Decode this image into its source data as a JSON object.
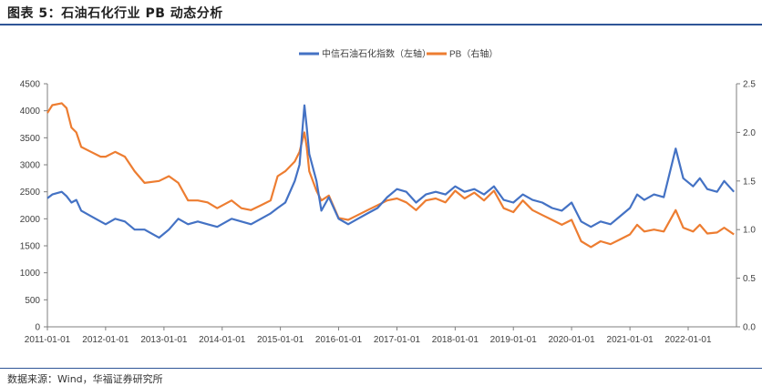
{
  "figure_title": "图表 5：石油石化行业 PB 动态分析",
  "source_note": "数据来源：Wind，华福证券研究所",
  "chart_data": {
    "type": "line",
    "title": "",
    "legend_position": "top-center",
    "grid": false,
    "x_ticks": [
      "2011-01-01",
      "2012-01-01",
      "2013-01-01",
      "2014-01-01",
      "2015-01-01",
      "2016-01-01",
      "2017-01-01",
      "2018-01-01",
      "2019-01-01",
      "2020-01-01",
      "2021-01-01",
      "2022-01-01"
    ],
    "xlim": [
      "2011-01-01",
      "2022-10-31"
    ],
    "y_left": {
      "ylim": [
        0,
        4500
      ],
      "ticks": [
        "0",
        "500",
        "1000",
        "1500",
        "2000",
        "2500",
        "3000",
        "3500",
        "4000",
        "4500"
      ]
    },
    "y_right": {
      "ylim": [
        0,
        2.5
      ],
      "ticks": [
        "0.0",
        "0.5",
        "1.0",
        "1.5",
        "2.0",
        "2.5"
      ]
    },
    "series": [
      {
        "name": "中信石油石化指数（左轴）",
        "axis": "left",
        "color": "#4472c4",
        "points": [
          [
            "2011-01-01",
            2380
          ],
          [
            "2011-02-01",
            2450
          ],
          [
            "2011-04-01",
            2500
          ],
          [
            "2011-05-01",
            2420
          ],
          [
            "2011-06-01",
            2300
          ],
          [
            "2011-07-01",
            2350
          ],
          [
            "2011-08-01",
            2150
          ],
          [
            "2011-10-01",
            2050
          ],
          [
            "2011-12-01",
            1950
          ],
          [
            "2012-01-01",
            1900
          ],
          [
            "2012-03-01",
            2000
          ],
          [
            "2012-05-01",
            1950
          ],
          [
            "2012-07-01",
            1800
          ],
          [
            "2012-09-01",
            1800
          ],
          [
            "2012-12-01",
            1650
          ],
          [
            "2013-02-01",
            1800
          ],
          [
            "2013-04-01",
            2000
          ],
          [
            "2013-06-01",
            1900
          ],
          [
            "2013-08-01",
            1950
          ],
          [
            "2013-10-01",
            1900
          ],
          [
            "2013-12-01",
            1850
          ],
          [
            "2014-03-01",
            2000
          ],
          [
            "2014-05-01",
            1950
          ],
          [
            "2014-07-01",
            1900
          ],
          [
            "2014-09-01",
            2000
          ],
          [
            "2014-11-01",
            2100
          ],
          [
            "2014-12-15",
            2200
          ],
          [
            "2015-02-01",
            2300
          ],
          [
            "2015-04-01",
            2700
          ],
          [
            "2015-05-01",
            3000
          ],
          [
            "2015-06-01",
            4100
          ],
          [
            "2015-06-15",
            3700
          ],
          [
            "2015-07-01",
            3200
          ],
          [
            "2015-08-15",
            2700
          ],
          [
            "2015-09-15",
            2150
          ],
          [
            "2015-11-01",
            2400
          ],
          [
            "2016-01-01",
            2000
          ],
          [
            "2016-03-01",
            1900
          ],
          [
            "2016-05-01",
            2000
          ],
          [
            "2016-07-01",
            2100
          ],
          [
            "2016-09-01",
            2200
          ],
          [
            "2016-11-01",
            2400
          ],
          [
            "2017-01-01",
            2550
          ],
          [
            "2017-03-01",
            2500
          ],
          [
            "2017-05-01",
            2300
          ],
          [
            "2017-07-01",
            2450
          ],
          [
            "2017-09-01",
            2500
          ],
          [
            "2017-11-01",
            2450
          ],
          [
            "2018-01-01",
            2600
          ],
          [
            "2018-03-01",
            2500
          ],
          [
            "2018-05-01",
            2550
          ],
          [
            "2018-07-01",
            2450
          ],
          [
            "2018-09-01",
            2600
          ],
          [
            "2018-11-01",
            2350
          ],
          [
            "2019-01-01",
            2300
          ],
          [
            "2019-03-01",
            2450
          ],
          [
            "2019-05-01",
            2350
          ],
          [
            "2019-07-01",
            2300
          ],
          [
            "2019-09-01",
            2200
          ],
          [
            "2019-11-01",
            2150
          ],
          [
            "2020-01-01",
            2300
          ],
          [
            "2020-03-01",
            1950
          ],
          [
            "2020-05-01",
            1850
          ],
          [
            "2020-07-01",
            1950
          ],
          [
            "2020-09-01",
            1900
          ],
          [
            "2020-11-01",
            2050
          ],
          [
            "2021-01-01",
            2200
          ],
          [
            "2021-02-15",
            2450
          ],
          [
            "2021-04-01",
            2350
          ],
          [
            "2021-06-01",
            2450
          ],
          [
            "2021-08-01",
            2400
          ],
          [
            "2021-10-15",
            3300
          ],
          [
            "2021-12-01",
            2750
          ],
          [
            "2022-02-01",
            2600
          ],
          [
            "2022-03-15",
            2750
          ],
          [
            "2022-05-01",
            2550
          ],
          [
            "2022-07-01",
            2500
          ],
          [
            "2022-08-15",
            2700
          ],
          [
            "2022-10-15",
            2500
          ]
        ]
      },
      {
        "name": "PB（右轴）",
        "axis": "right",
        "color": "#ed7d31",
        "points": [
          [
            "2011-01-01",
            2.2
          ],
          [
            "2011-02-01",
            2.28
          ],
          [
            "2011-04-01",
            2.3
          ],
          [
            "2011-05-01",
            2.25
          ],
          [
            "2011-06-01",
            2.05
          ],
          [
            "2011-07-01",
            2.0
          ],
          [
            "2011-08-01",
            1.85
          ],
          [
            "2011-10-01",
            1.8
          ],
          [
            "2011-12-01",
            1.75
          ],
          [
            "2012-01-01",
            1.75
          ],
          [
            "2012-03-01",
            1.8
          ],
          [
            "2012-05-01",
            1.75
          ],
          [
            "2012-07-01",
            1.6
          ],
          [
            "2012-09-01",
            1.48
          ],
          [
            "2012-12-01",
            1.5
          ],
          [
            "2013-02-01",
            1.55
          ],
          [
            "2013-04-01",
            1.48
          ],
          [
            "2013-06-01",
            1.3
          ],
          [
            "2013-08-01",
            1.3
          ],
          [
            "2013-10-01",
            1.28
          ],
          [
            "2013-12-01",
            1.22
          ],
          [
            "2014-03-01",
            1.3
          ],
          [
            "2014-05-01",
            1.22
          ],
          [
            "2014-07-01",
            1.2
          ],
          [
            "2014-09-01",
            1.25
          ],
          [
            "2014-11-01",
            1.3
          ],
          [
            "2014-12-15",
            1.55
          ],
          [
            "2015-02-01",
            1.6
          ],
          [
            "2015-04-01",
            1.7
          ],
          [
            "2015-05-01",
            1.8
          ],
          [
            "2015-06-01",
            2.0
          ],
          [
            "2015-06-15",
            1.85
          ],
          [
            "2015-07-01",
            1.6
          ],
          [
            "2015-08-15",
            1.4
          ],
          [
            "2015-09-15",
            1.3
          ],
          [
            "2015-11-01",
            1.35
          ],
          [
            "2016-01-01",
            1.12
          ],
          [
            "2016-03-01",
            1.1
          ],
          [
            "2016-05-01",
            1.15
          ],
          [
            "2016-07-01",
            1.2
          ],
          [
            "2016-09-01",
            1.25
          ],
          [
            "2016-11-01",
            1.3
          ],
          [
            "2017-01-01",
            1.32
          ],
          [
            "2017-03-01",
            1.28
          ],
          [
            "2017-05-01",
            1.2
          ],
          [
            "2017-07-01",
            1.3
          ],
          [
            "2017-09-01",
            1.32
          ],
          [
            "2017-11-01",
            1.28
          ],
          [
            "2018-01-01",
            1.4
          ],
          [
            "2018-03-01",
            1.32
          ],
          [
            "2018-05-01",
            1.38
          ],
          [
            "2018-07-01",
            1.3
          ],
          [
            "2018-09-01",
            1.4
          ],
          [
            "2018-11-01",
            1.22
          ],
          [
            "2019-01-01",
            1.18
          ],
          [
            "2019-03-01",
            1.3
          ],
          [
            "2019-05-01",
            1.2
          ],
          [
            "2019-07-01",
            1.15
          ],
          [
            "2019-09-01",
            1.1
          ],
          [
            "2019-11-01",
            1.05
          ],
          [
            "2020-01-01",
            1.1
          ],
          [
            "2020-03-01",
            0.88
          ],
          [
            "2020-05-01",
            0.82
          ],
          [
            "2020-07-01",
            0.88
          ],
          [
            "2020-09-01",
            0.85
          ],
          [
            "2020-11-01",
            0.9
          ],
          [
            "2021-01-01",
            0.95
          ],
          [
            "2021-02-15",
            1.05
          ],
          [
            "2021-04-01",
            0.98
          ],
          [
            "2021-06-01",
            1.0
          ],
          [
            "2021-08-01",
            0.98
          ],
          [
            "2021-10-15",
            1.2
          ],
          [
            "2021-12-01",
            1.02
          ],
          [
            "2022-02-01",
            0.98
          ],
          [
            "2022-03-15",
            1.05
          ],
          [
            "2022-05-01",
            0.96
          ],
          [
            "2022-07-01",
            0.97
          ],
          [
            "2022-08-15",
            1.02
          ],
          [
            "2022-10-15",
            0.95
          ]
        ]
      }
    ]
  }
}
